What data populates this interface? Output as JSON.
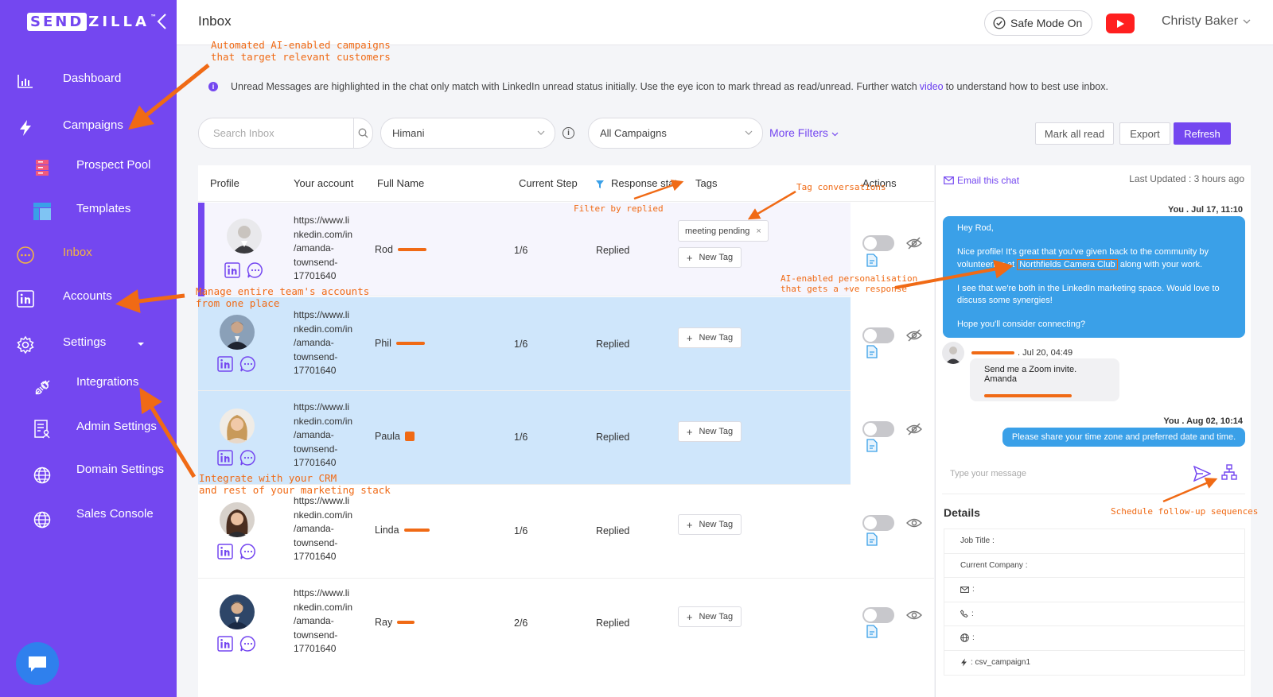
{
  "sidebar": {
    "logo_box": "SEND",
    "logo_rest": "ZILLA",
    "logo_tm": "™",
    "items": [
      {
        "label": "Dashboard",
        "icon": "bar-chart-icon"
      },
      {
        "label": "Campaigns",
        "icon": "lightning-icon"
      },
      {
        "label": "Prospect Pool",
        "icon": "database-icon"
      },
      {
        "label": "Templates",
        "icon": "template-icon"
      },
      {
        "label": "Inbox",
        "icon": "chat-icon",
        "active": true
      },
      {
        "label": "Accounts",
        "icon": "linkedin-icon"
      },
      {
        "label": "Settings",
        "icon": "gear-icon"
      },
      {
        "label": "Integrations",
        "icon": "plug-icon"
      },
      {
        "label": "Admin Settings",
        "icon": "admin-icon"
      },
      {
        "label": "Domain Settings",
        "icon": "globe-icon"
      },
      {
        "label": "Sales Console",
        "icon": "globe-icon"
      }
    ]
  },
  "header": {
    "title": "Inbox",
    "safe_mode": "Safe Mode On",
    "user": "Christy Baker"
  },
  "info": {
    "text_before": "Unread Messages are highlighted in the chat only match with LinkedIn unread status initially. Use the eye icon to mark thread as read/unread. Further watch",
    "link": "video",
    "text_after": "to understand how to best use inbox."
  },
  "filters": {
    "search_placeholder": "Search Inbox",
    "account": "Himani",
    "campaign": "All Campaigns",
    "more_filters": "More Filters",
    "mark_all_read": "Mark all read",
    "export": "Export",
    "refresh": "Refresh"
  },
  "table": {
    "columns": [
      "Profile",
      "Your account",
      "Full Name",
      "Current Step",
      "Response stat",
      "Tags",
      "Actions"
    ],
    "new_tag": "New Tag",
    "rows": [
      {
        "url_lines": [
          "https://www.li",
          "nkedin.com/in",
          "/amanda-",
          "townsend-",
          "17701640"
        ],
        "name": "Rod",
        "step": "1/6",
        "status": "Replied",
        "tag": "meeting pending",
        "eye": "hidden"
      },
      {
        "url_lines": [
          "https://www.li",
          "nkedin.com/in",
          "/amanda-",
          "townsend-",
          "17701640"
        ],
        "name": "Phil",
        "step": "1/6",
        "status": "Replied",
        "eye": "hidden"
      },
      {
        "url_lines": [
          "https://www.li",
          "nkedin.com/in",
          "/amanda-",
          "townsend-",
          "17701640"
        ],
        "name": "Paula",
        "step": "1/6",
        "status": "Replied",
        "eye": "hidden"
      },
      {
        "url_lines": [
          "https://www.li",
          "nkedin.com/in",
          "/amanda-",
          "townsend-",
          "17701640"
        ],
        "name": "Linda",
        "step": "1/6",
        "status": "Replied",
        "eye": "visible"
      },
      {
        "url_lines": [
          "https://www.li",
          "nkedin.com/in",
          "/amanda-",
          "townsend-",
          "17701640"
        ],
        "name": "Ray",
        "step": "2/6",
        "status": "Replied",
        "eye": "visible"
      }
    ]
  },
  "chat": {
    "email_this_chat": "Email this chat",
    "last_updated": "Last Updated : 3 hours ago",
    "msg1_meta": "You . Jul 17, 11:10",
    "msg1_p1": "Hey Rod,",
    "msg1_p2_before": "Nice profile! It's great that you've given back to the community by volunteering at",
    "msg1_p2_highlight": "Northfields Camera Club",
    "msg1_p2_after": "along with your work.",
    "msg1_p3": "I see that we're both in the LinkedIn marketing space. Would love to discuss some synergies!",
    "msg1_p4": "Hope you'll consider connecting?",
    "msg2_meta": ". Jul 20, 04:49",
    "msg2_text": "Send me a Zoom invite. Amanda",
    "msg3_meta": "You . Aug 02, 10:14",
    "msg3_text": "Please share your time zone and preferred date and time.",
    "input_placeholder": "Type your message",
    "details_title": "Details",
    "details": {
      "job_title": "Job Title :",
      "current_company": "Current Company :",
      "email": ":",
      "phone": ":",
      "website": ":",
      "campaign": ": csv_campaign1"
    }
  },
  "annotations": {
    "campaigns": [
      "Automated AI-enabled campaigns",
      "that target relevant customers"
    ],
    "filter": "Filter by replied",
    "tags": "Tag conversations",
    "personalisation": [
      "AI-enabled personalisation",
      "that gets a +ve response"
    ],
    "accounts": [
      "Manage entire team's accounts",
      "from one place"
    ],
    "crm": [
      "Integrate with your CRM",
      "and rest of your marketing stack"
    ],
    "schedule": "Schedule follow-up sequences"
  }
}
